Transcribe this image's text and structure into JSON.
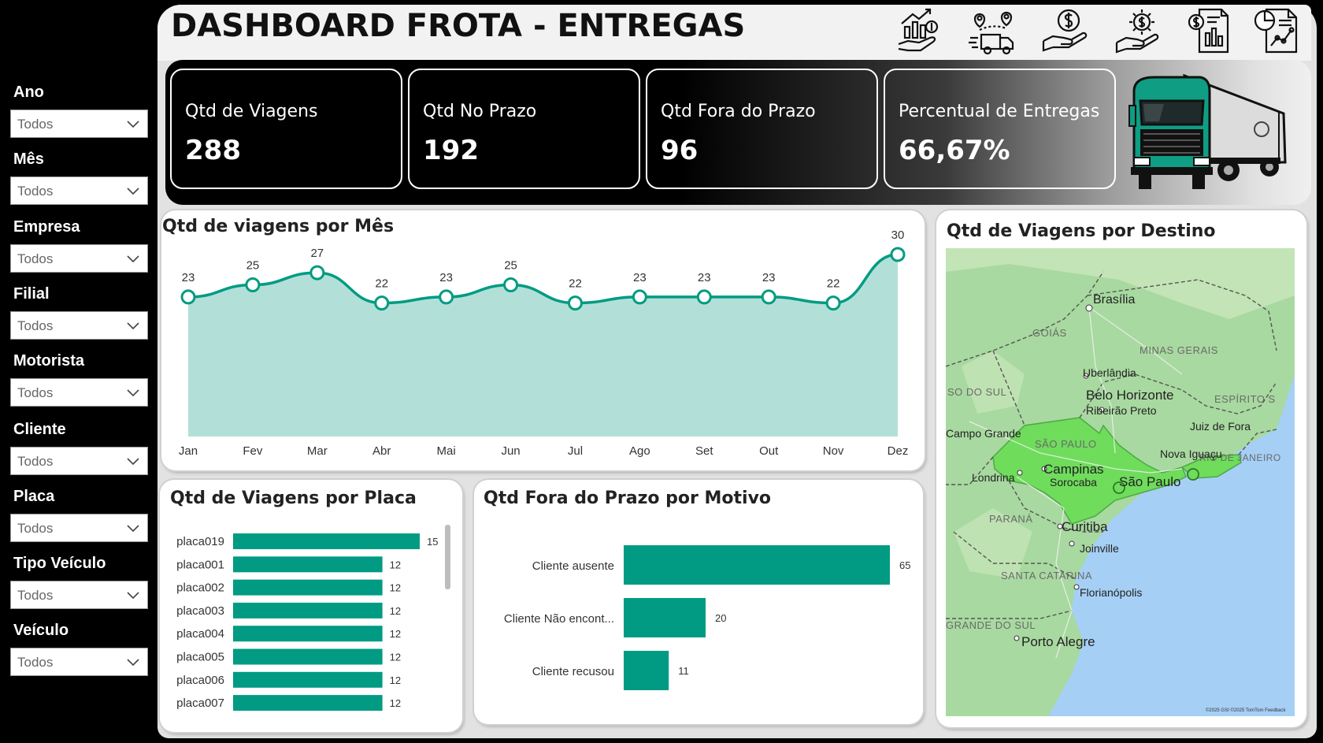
{
  "header": {
    "title": "DASHBOARD FROTA - ENTREGAS"
  },
  "filters": [
    {
      "label": "Ano",
      "value": "Todos"
    },
    {
      "label": "Mês",
      "value": "Todos"
    },
    {
      "label": "Empresa",
      "value": "Todos"
    },
    {
      "label": "Filial",
      "value": "Todos"
    },
    {
      "label": "Motorista",
      "value": "Todos"
    },
    {
      "label": "Cliente",
      "value": "Todos"
    },
    {
      "label": "Placa",
      "value": "Todos"
    },
    {
      "label": "Tipo Veículo",
      "value": "Todos"
    },
    {
      "label": "Veículo",
      "value": "Todos"
    }
  ],
  "kpis": [
    {
      "label": "Qtd de Viagens",
      "value": "288"
    },
    {
      "label": "Qtd No Prazo",
      "value": "192"
    },
    {
      "label": "Qtd Fora do Prazo",
      "value": "96"
    },
    {
      "label": "Percentual de Entregas",
      "value": "66,67%"
    }
  ],
  "colors": {
    "accent": "#009b82",
    "area": "#b2e0d9",
    "map_water": "#a6cff5",
    "map_land": "#a8d9a0",
    "map_highlight": "#6fdc5c"
  },
  "chart_data": [
    {
      "type": "area",
      "title": "Qtd de viagens por Mês",
      "categories": [
        "Jan",
        "Fev",
        "Mar",
        "Abr",
        "Mai",
        "Jun",
        "Jul",
        "Ago",
        "Set",
        "Out",
        "Nov",
        "Dez"
      ],
      "values": [
        23,
        25,
        27,
        22,
        23,
        25,
        22,
        23,
        23,
        23,
        22,
        30
      ],
      "ylim": [
        0,
        32
      ]
    },
    {
      "type": "bar",
      "orientation": "horizontal",
      "title": "Qtd de Viagens por Placa",
      "categories": [
        "placa019",
        "placa001",
        "placa002",
        "placa003",
        "placa004",
        "placa005",
        "placa006",
        "placa007"
      ],
      "values": [
        15,
        12,
        12,
        12,
        12,
        12,
        12,
        12
      ],
      "xlim": [
        0,
        15
      ]
    },
    {
      "type": "bar",
      "orientation": "horizontal",
      "title": "Qtd Fora do Prazo por Motivo",
      "categories": [
        "Cliente ausente",
        "Cliente Não encont...",
        "Cliente recusou"
      ],
      "values": [
        65,
        20,
        11
      ],
      "xlim": [
        0,
        65
      ]
    }
  ],
  "map": {
    "title": "Qtd de Viagens por Destino",
    "cities": [
      "Brasília",
      "Uberlândia",
      "Belo Horizonte",
      "Ribeirão Preto",
      "Juiz de Fora",
      "Campinas",
      "Sorocaba",
      "São Paulo",
      "Nova Iguaçu",
      "Londrina",
      "Curitiba",
      "Joinville",
      "Florianópolis",
      "Porto Alegre",
      "Campo Grande"
    ],
    "regions": [
      "GOIÁS",
      "MINAS GERAIS",
      "SO DO SUL",
      "ESPÍRITO S",
      "SÃO PAULO",
      "RIO DE JANEIRO",
      "PARANÁ",
      "SANTA CATARINA",
      "GRANDE DO SUL"
    ],
    "attribution": "©2025 GSI ©2025 TomTom Feedback"
  }
}
